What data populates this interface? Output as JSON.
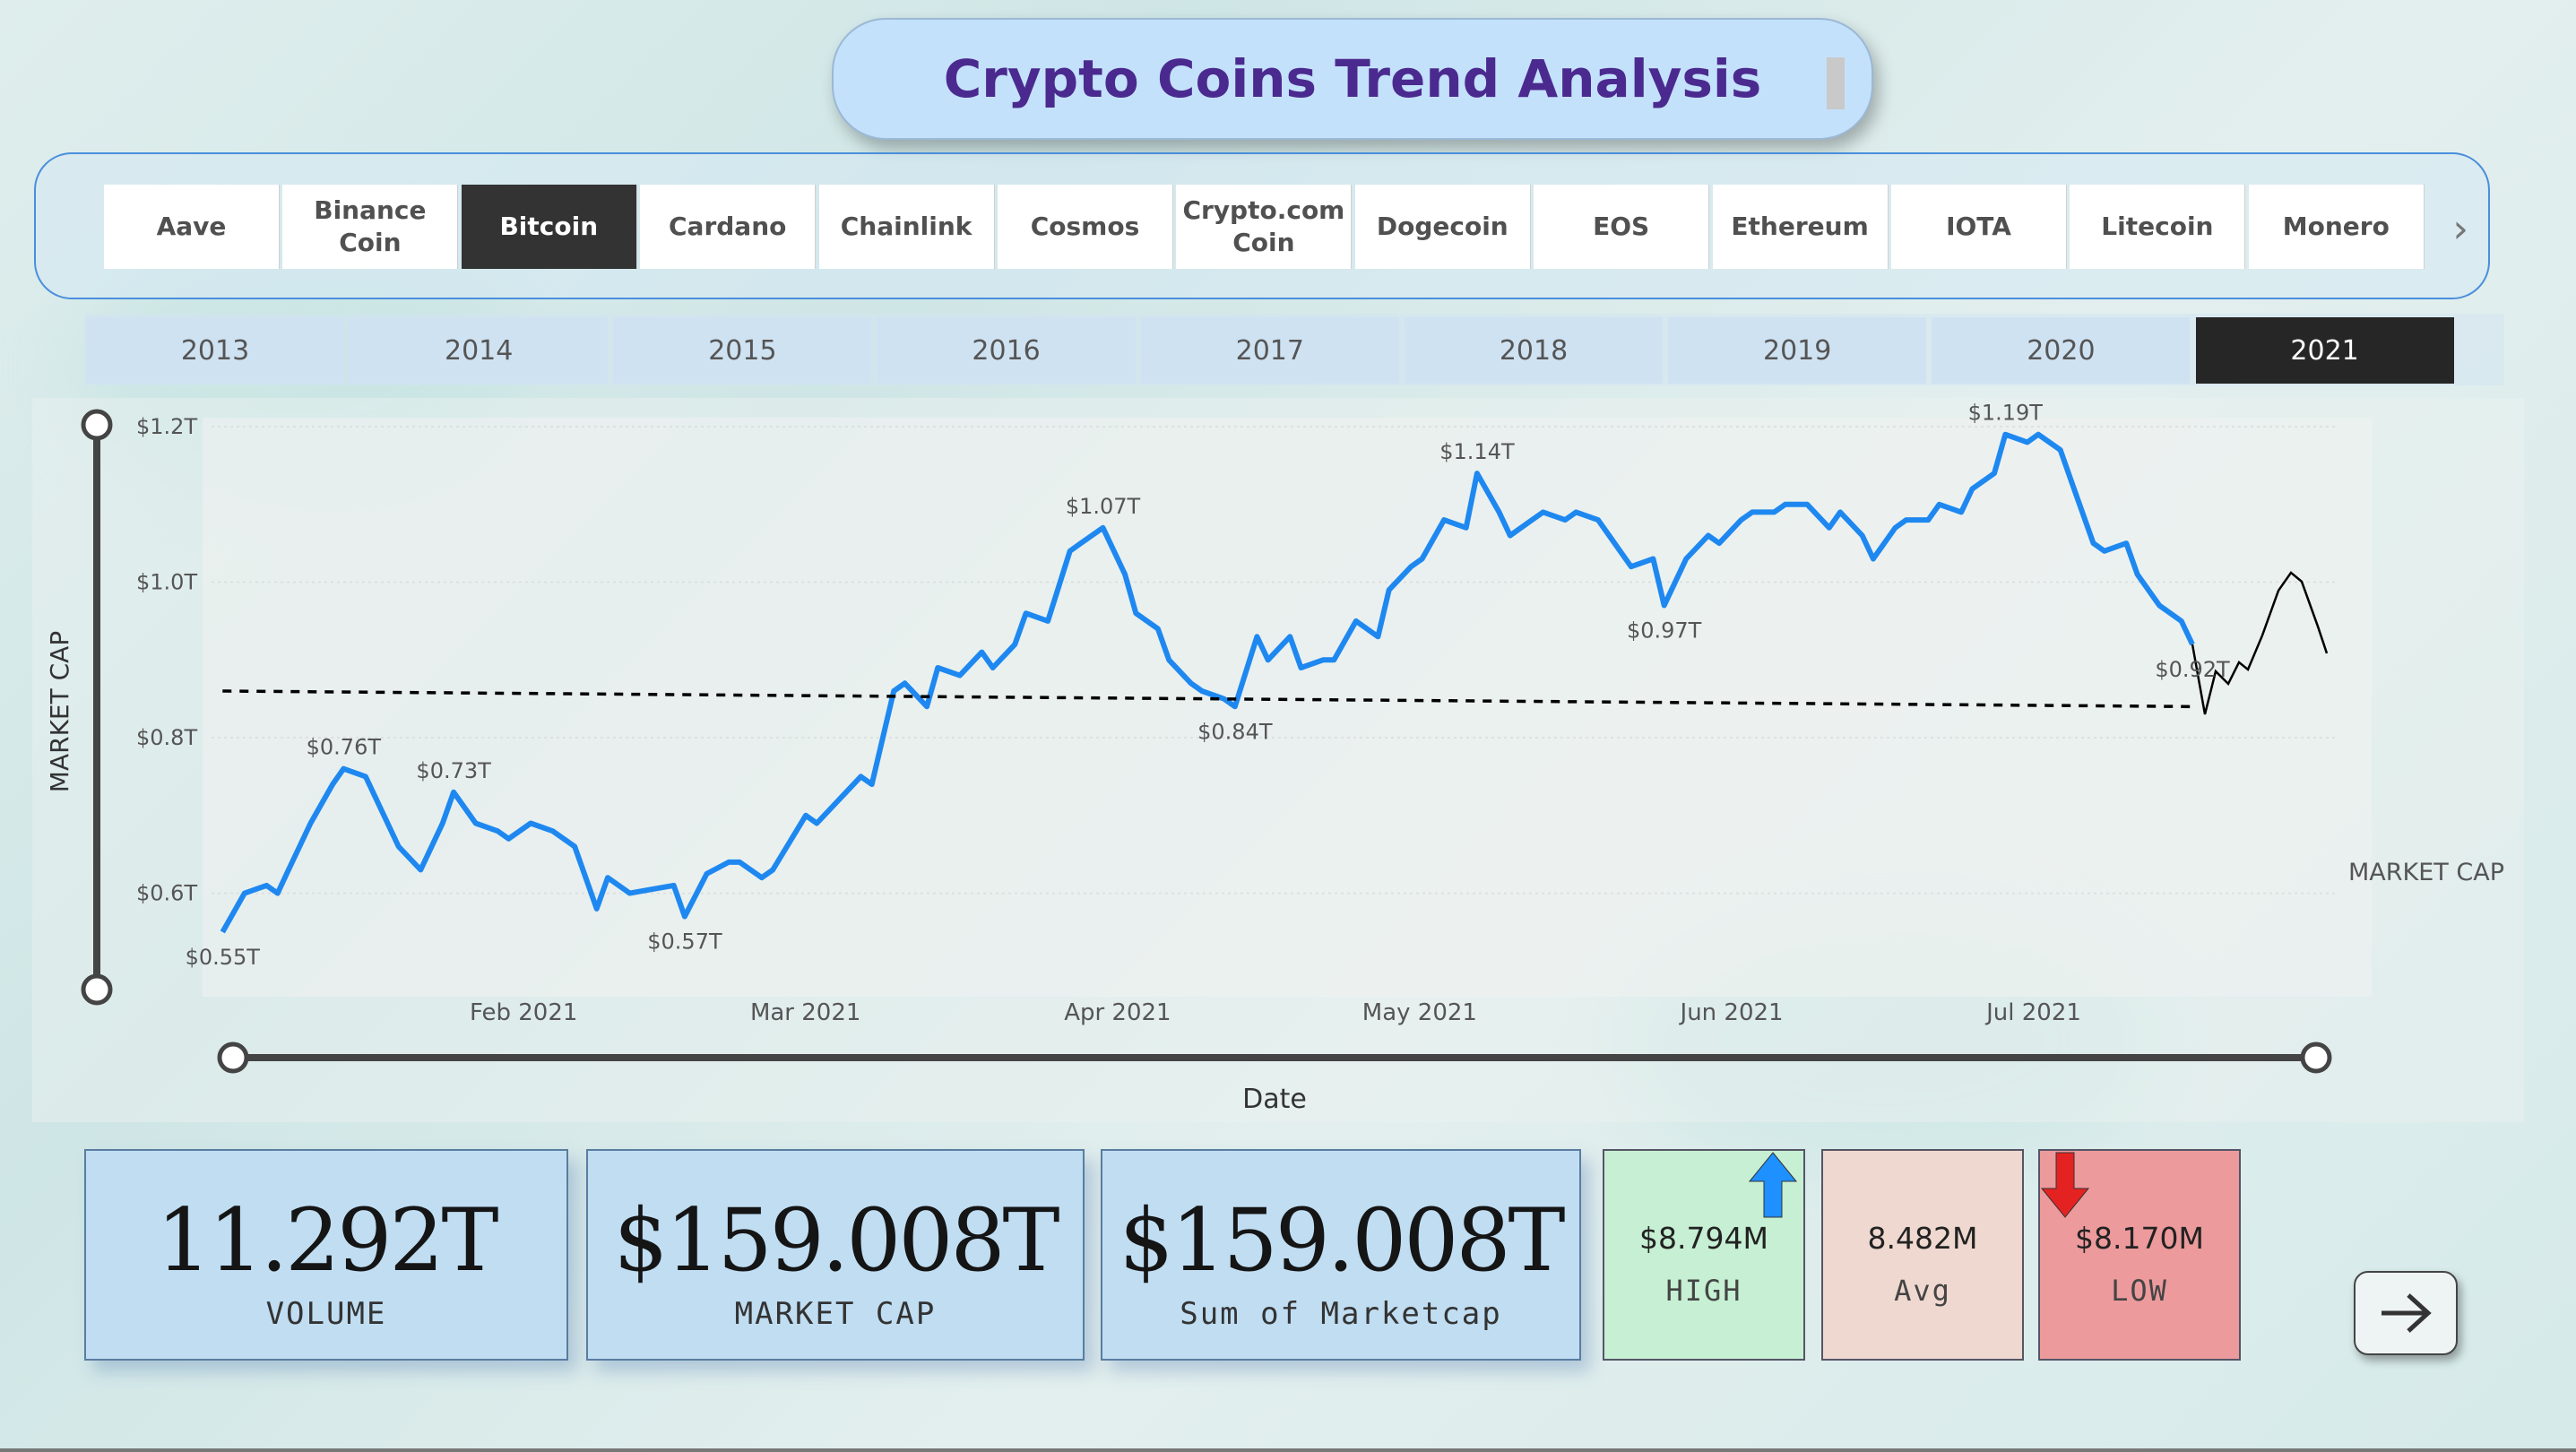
{
  "title": "Crypto Coins Trend Analysis",
  "coins": [
    {
      "label": "Aave",
      "selected": false
    },
    {
      "label": "Binance Coin",
      "selected": false
    },
    {
      "label": "Bitcoin",
      "selected": true
    },
    {
      "label": "Cardano",
      "selected": false
    },
    {
      "label": "Chainlink",
      "selected": false
    },
    {
      "label": "Cosmos",
      "selected": false
    },
    {
      "label": "Crypto.com Coin",
      "selected": false
    },
    {
      "label": "Dogecoin",
      "selected": false
    },
    {
      "label": "EOS",
      "selected": false
    },
    {
      "label": "Ethereum",
      "selected": false
    },
    {
      "label": "IOTA",
      "selected": false
    },
    {
      "label": "Litecoin",
      "selected": false
    },
    {
      "label": "Monero",
      "selected": false
    }
  ],
  "years": [
    {
      "label": "2013",
      "selected": false
    },
    {
      "label": "2014",
      "selected": false
    },
    {
      "label": "2015",
      "selected": false
    },
    {
      "label": "2016",
      "selected": false
    },
    {
      "label": "2017",
      "selected": false
    },
    {
      "label": "2018",
      "selected": false
    },
    {
      "label": "2019",
      "selected": false
    },
    {
      "label": "2020",
      "selected": false
    },
    {
      "label": "2021",
      "selected": true
    }
  ],
  "kpis": [
    {
      "value": "11.292T",
      "label": "VOLUME"
    },
    {
      "value": "$159.008T",
      "label": "MARKET CAP"
    },
    {
      "value": "$159.008T",
      "label": "Sum of Marketcap"
    }
  ],
  "stats": [
    {
      "value": "$8.794M",
      "label": "HIGH",
      "color": "#c6efd3",
      "arrow": "up"
    },
    {
      "value": "8.482M",
      "label": "Avg",
      "color": "#efd8cf",
      "arrow": "none"
    },
    {
      "value": "$8.170M",
      "label": "LOW",
      "color": "#ec9a9c",
      "arrow": "down"
    }
  ],
  "colors": {
    "line": "#1e88f0",
    "trend": "#000000",
    "forecast": "#000000",
    "up_arrow": "#1e90ff",
    "down_arrow": "#e52222"
  },
  "chart_data": {
    "type": "line",
    "title": "",
    "xlabel": "Date",
    "ylabel": "MARKET CAP",
    "series_label": "MARKET CAP",
    "ylim": [
      0.55,
      1.2
    ],
    "y_ticks": [
      {
        "value": 0.6,
        "label": "$0.6T"
      },
      {
        "value": 0.8,
        "label": "$0.8T"
      },
      {
        "value": 1.0,
        "label": "$1.0T"
      },
      {
        "value": 1.2,
        "label": "$1.2T"
      }
    ],
    "x_ticks": [
      {
        "date": "2021-02-01",
        "label": "Feb 2021"
      },
      {
        "date": "2021-03-01",
        "label": "Mar 2021"
      },
      {
        "date": "2021-04-01",
        "label": "Apr 2021"
      },
      {
        "date": "2021-05-01",
        "label": "May 2021"
      },
      {
        "date": "2021-06-01",
        "label": "Jun 2021"
      },
      {
        "date": "2021-07-01",
        "label": "Jul 2021"
      }
    ],
    "xlim": [
      "2021-01-01",
      "2021-07-31"
    ],
    "series": [
      {
        "name": "MARKET CAP",
        "points": [
          [
            "2021-01-02",
            0.55
          ],
          [
            "2021-01-04",
            0.6
          ],
          [
            "2021-01-06",
            0.61
          ],
          [
            "2021-01-07",
            0.6
          ],
          [
            "2021-01-08",
            0.63
          ],
          [
            "2021-01-10",
            0.69
          ],
          [
            "2021-01-12",
            0.74
          ],
          [
            "2021-01-13",
            0.76
          ],
          [
            "2021-01-15",
            0.75
          ],
          [
            "2021-01-16",
            0.72
          ],
          [
            "2021-01-18",
            0.66
          ],
          [
            "2021-01-20",
            0.63
          ],
          [
            "2021-01-22",
            0.69
          ],
          [
            "2021-01-23",
            0.73
          ],
          [
            "2021-01-25",
            0.69
          ],
          [
            "2021-01-27",
            0.68
          ],
          [
            "2021-01-28",
            0.67
          ],
          [
            "2021-01-30",
            0.69
          ],
          [
            "2021-02-01",
            0.68
          ],
          [
            "2021-02-03",
            0.66
          ],
          [
            "2021-02-05",
            0.58
          ],
          [
            "2021-02-06",
            0.62
          ],
          [
            "2021-02-08",
            0.6
          ],
          [
            "2021-02-10",
            0.605
          ],
          [
            "2021-02-12",
            0.61
          ],
          [
            "2021-02-13",
            0.57
          ],
          [
            "2021-02-15",
            0.625
          ],
          [
            "2021-02-17",
            0.64
          ],
          [
            "2021-02-18",
            0.64
          ],
          [
            "2021-02-20",
            0.62
          ],
          [
            "2021-02-21",
            0.63
          ],
          [
            "2021-02-24",
            0.7
          ],
          [
            "2021-02-25",
            0.69
          ],
          [
            "2021-02-27",
            0.72
          ],
          [
            "2021-03-01",
            0.75
          ],
          [
            "2021-03-02",
            0.74
          ],
          [
            "2021-03-04",
            0.86
          ],
          [
            "2021-03-05",
            0.87
          ],
          [
            "2021-03-07",
            0.84
          ],
          [
            "2021-03-08",
            0.89
          ],
          [
            "2021-03-10",
            0.88
          ],
          [
            "2021-03-12",
            0.91
          ],
          [
            "2021-03-13",
            0.89
          ],
          [
            "2021-03-15",
            0.92
          ],
          [
            "2021-03-16",
            0.96
          ],
          [
            "2021-03-18",
            0.95
          ],
          [
            "2021-03-20",
            1.04
          ],
          [
            "2021-03-21",
            1.05
          ],
          [
            "2021-03-23",
            1.07
          ],
          [
            "2021-03-25",
            1.01
          ],
          [
            "2021-03-26",
            0.96
          ],
          [
            "2021-03-28",
            0.94
          ],
          [
            "2021-03-29",
            0.9
          ],
          [
            "2021-03-31",
            0.87
          ],
          [
            "2021-04-01",
            0.86
          ],
          [
            "2021-04-03",
            0.85
          ],
          [
            "2021-04-04",
            0.84
          ],
          [
            "2021-04-06",
            0.93
          ],
          [
            "2021-04-07",
            0.9
          ],
          [
            "2021-04-09",
            0.93
          ],
          [
            "2021-04-10",
            0.89
          ],
          [
            "2021-04-12",
            0.9
          ],
          [
            "2021-04-13",
            0.9
          ],
          [
            "2021-04-15",
            0.95
          ],
          [
            "2021-04-17",
            0.93
          ],
          [
            "2021-04-18",
            0.99
          ],
          [
            "2021-04-20",
            1.02
          ],
          [
            "2021-04-21",
            1.03
          ],
          [
            "2021-04-23",
            1.08
          ],
          [
            "2021-04-25",
            1.07
          ],
          [
            "2021-04-26",
            1.14
          ],
          [
            "2021-04-28",
            1.09
          ],
          [
            "2021-04-29",
            1.06
          ],
          [
            "2021-05-01",
            1.08
          ],
          [
            "2021-05-02",
            1.09
          ],
          [
            "2021-05-04",
            1.08
          ],
          [
            "2021-05-05",
            1.09
          ],
          [
            "2021-05-07",
            1.08
          ],
          [
            "2021-05-08",
            1.06
          ],
          [
            "2021-05-10",
            1.02
          ],
          [
            "2021-05-12",
            1.03
          ],
          [
            "2021-05-13",
            0.97
          ],
          [
            "2021-05-15",
            1.03
          ],
          [
            "2021-05-17",
            1.06
          ],
          [
            "2021-05-18",
            1.05
          ],
          [
            "2021-05-20",
            1.08
          ],
          [
            "2021-05-21",
            1.09
          ],
          [
            "2021-05-23",
            1.09
          ],
          [
            "2021-05-24",
            1.1
          ],
          [
            "2021-05-26",
            1.1
          ],
          [
            "2021-05-28",
            1.07
          ],
          [
            "2021-05-29",
            1.09
          ],
          [
            "2021-05-31",
            1.06
          ],
          [
            "2021-06-01",
            1.03
          ],
          [
            "2021-06-03",
            1.07
          ],
          [
            "2021-06-04",
            1.08
          ],
          [
            "2021-06-06",
            1.08
          ],
          [
            "2021-06-07",
            1.1
          ],
          [
            "2021-06-09",
            1.09
          ],
          [
            "2021-06-10",
            1.12
          ],
          [
            "2021-06-12",
            1.14
          ],
          [
            "2021-06-13",
            1.19
          ],
          [
            "2021-06-15",
            1.18
          ],
          [
            "2021-06-16",
            1.19
          ],
          [
            "2021-06-18",
            1.17
          ],
          [
            "2021-06-19",
            1.13
          ],
          [
            "2021-06-21",
            1.05
          ],
          [
            "2021-06-22",
            1.04
          ],
          [
            "2021-06-24",
            1.05
          ],
          [
            "2021-06-25",
            1.01
          ],
          [
            "2021-06-27",
            0.97
          ],
          [
            "2021-06-29",
            0.95
          ],
          [
            "2021-06-30",
            0.92
          ]
        ]
      }
    ],
    "trend_line": {
      "start": 0.86,
      "end": 0.84
    },
    "labels": [
      {
        "text": "$0.55T",
        "date": "2021-01-02",
        "value": 0.55,
        "pos": "below"
      },
      {
        "text": "$0.76T",
        "date": "2021-01-13",
        "value": 0.76,
        "pos": "above"
      },
      {
        "text": "$0.73T",
        "date": "2021-01-23",
        "value": 0.73,
        "pos": "above"
      },
      {
        "text": "$0.57T",
        "date": "2021-02-13",
        "value": 0.57,
        "pos": "below"
      },
      {
        "text": "$1.07T",
        "date": "2021-03-23",
        "value": 1.07,
        "pos": "above"
      },
      {
        "text": "$0.84T",
        "date": "2021-04-04",
        "value": 0.84,
        "pos": "below"
      },
      {
        "text": "$1.14T",
        "date": "2021-04-26",
        "value": 1.14,
        "pos": "above"
      },
      {
        "text": "$0.97T",
        "date": "2021-05-13",
        "value": 0.97,
        "pos": "below"
      },
      {
        "text": "$1.19T",
        "date": "2021-06-13",
        "value": 1.19,
        "pos": "above"
      },
      {
        "text": "$0.92T",
        "date": "2021-06-30",
        "value": 0.92,
        "pos": "below"
      }
    ]
  }
}
